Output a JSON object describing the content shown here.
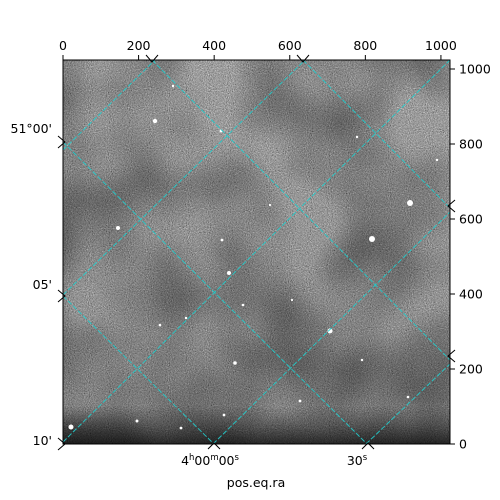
{
  "chart_data": {
    "type": "image",
    "xlabel": "pos.eq.ra",
    "ylabel": "",
    "xlim": [
      0,
      1024
    ],
    "ylim": [
      0,
      1024
    ],
    "x_ticks_top": [
      "0",
      "200",
      "400",
      "600",
      "800",
      "1000"
    ],
    "y_ticks_right": [
      "0",
      "200",
      "400",
      "600",
      "800",
      "1000"
    ],
    "ra_tick_labels": [
      {
        "label_main": "4",
        "sup1": "h",
        "mid": "00",
        "sup2": "m",
        "end": "00",
        "sup3": "s"
      },
      {
        "label_main": "30",
        "sup1": "",
        "mid": "",
        "sup2": "",
        "end": "",
        "sup3": "s"
      }
    ],
    "dec_tick_labels": [
      "51°00'",
      "05'",
      "10'"
    ],
    "grid": true,
    "grid_color": "#22cccc",
    "image_colormap": "gray"
  }
}
